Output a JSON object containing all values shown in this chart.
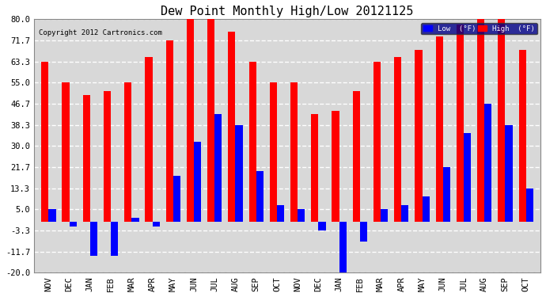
{
  "title": "Dew Point Monthly High/Low 20121125",
  "copyright": "Copyright 2012 Cartronics.com",
  "months": [
    "NOV",
    "DEC",
    "JAN",
    "FEB",
    "MAR",
    "APR",
    "MAY",
    "JUN",
    "JUL",
    "AUG",
    "SEP",
    "OCT",
    "NOV",
    "DEC",
    "JAN",
    "FEB",
    "MAR",
    "APR",
    "MAY",
    "JUN",
    "JUL",
    "AUG",
    "SEP",
    "OCT"
  ],
  "high_values": [
    63.3,
    55.0,
    50.0,
    51.7,
    55.0,
    65.3,
    71.7,
    80.0,
    80.0,
    75.3,
    63.3,
    55.0,
    55.0,
    42.8,
    44.0,
    51.7,
    63.3,
    65.3,
    68.0,
    73.3,
    78.0,
    80.0,
    80.0,
    68.0
  ],
  "low_values": [
    5.0,
    -1.7,
    -13.3,
    -13.3,
    1.7,
    -1.7,
    18.3,
    31.7,
    42.7,
    38.3,
    20.0,
    6.7,
    5.0,
    -3.3,
    -20.0,
    -7.7,
    5.0,
    6.7,
    10.0,
    21.7,
    35.0,
    46.7,
    38.3,
    13.3
  ],
  "high_color": "#ff0000",
  "low_color": "#0000ff",
  "background_color": "#ffffff",
  "plot_bg_color": "#d8d8d8",
  "grid_color": "#ffffff",
  "ylim": [
    -20.0,
    80.0
  ],
  "yticks": [
    -20.0,
    -11.7,
    -3.3,
    5.0,
    13.3,
    21.7,
    30.0,
    38.3,
    46.7,
    55.0,
    63.3,
    71.7,
    80.0
  ],
  "bar_width": 0.35,
  "title_fontsize": 11,
  "tick_fontsize": 7.5,
  "legend_low_label": "Low  (°F)",
  "legend_high_label": "High  (°F)"
}
